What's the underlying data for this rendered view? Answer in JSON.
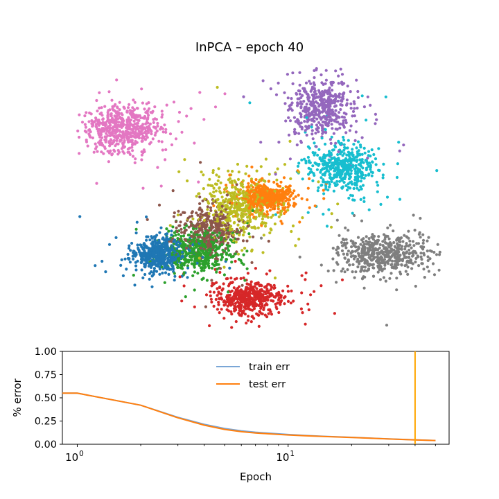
{
  "chart_data": [
    {
      "type": "scatter",
      "title": "InPCA – epoch 40",
      "axes_visible": false,
      "colors": [
        "#1f77b4",
        "#ff7f0e",
        "#2ca02c",
        "#d62728",
        "#9467bd",
        "#8c564b",
        "#e377c2",
        "#7f7f7f",
        "#bcbd22",
        "#17becf"
      ],
      "clusters": [
        {
          "color": "#1f77b4",
          "center": [
            -0.62,
            -0.35
          ],
          "spread": [
            0.09,
            0.07
          ],
          "count": 520
        },
        {
          "color": "#ff7f0e",
          "center": [
            0.1,
            0.13
          ],
          "spread": [
            0.08,
            0.05
          ],
          "count": 500
        },
        {
          "color": "#2ca02c",
          "center": [
            -0.35,
            -0.33
          ],
          "spread": [
            0.1,
            0.09
          ],
          "count": 480
        },
        {
          "color": "#d62728",
          "center": [
            -0.02,
            -0.72
          ],
          "spread": [
            0.11,
            0.07
          ],
          "count": 480
        },
        {
          "color": "#9467bd",
          "center": [
            0.45,
            0.88
          ],
          "spread": [
            0.1,
            0.12
          ],
          "count": 480
        },
        {
          "color": "#8c564b",
          "center": [
            -0.28,
            -0.15
          ],
          "spread": [
            0.09,
            0.1
          ],
          "count": 400
        },
        {
          "color": "#e377c2",
          "center": [
            -0.85,
            0.7
          ],
          "spread": [
            0.12,
            0.1
          ],
          "count": 560
        },
        {
          "color": "#7f7f7f",
          "center": [
            0.85,
            -0.35
          ],
          "spread": [
            0.15,
            0.08
          ],
          "count": 540
        },
        {
          "color": "#bcbd22",
          "center": [
            -0.08,
            0.05
          ],
          "spread": [
            0.12,
            0.12
          ],
          "count": 480
        },
        {
          "color": "#17becf",
          "center": [
            0.58,
            0.37
          ],
          "spread": [
            0.1,
            0.1
          ],
          "count": 480
        }
      ]
    },
    {
      "type": "line",
      "xlabel": "Epoch",
      "ylabel": "% error",
      "xscale": "log",
      "xlim": [
        0.85,
        58
      ],
      "ylim": [
        0,
        1
      ],
      "yticks": [
        "0.00",
        "0.25",
        "0.50",
        "0.75",
        "1.00"
      ],
      "yticks_values": [
        0,
        0.25,
        0.5,
        0.75,
        1.0
      ],
      "xtick_mantissa": "10",
      "xtick_exponents": [
        "0",
        "1"
      ],
      "xticks_values": [
        1,
        10
      ],
      "legend_position": "upper-center",
      "series": [
        {
          "name": "train err",
          "color": "#7aa6d6",
          "x": [
            0.85,
            1,
            2,
            3,
            4,
            5,
            6,
            7,
            8,
            10,
            12,
            15,
            20,
            25,
            30,
            40,
            50
          ],
          "y": [
            0.55,
            0.55,
            0.42,
            0.29,
            0.215,
            0.17,
            0.145,
            0.13,
            0.12,
            0.105,
            0.095,
            0.085,
            0.075,
            0.065,
            0.058,
            0.048,
            0.04
          ]
        },
        {
          "name": "test err",
          "color": "#ff7f0e",
          "x": [
            0.85,
            1,
            2,
            3,
            4,
            5,
            6,
            7,
            8,
            10,
            12,
            15,
            20,
            25,
            30,
            40,
            50
          ],
          "y": [
            0.55,
            0.55,
            0.42,
            0.285,
            0.205,
            0.16,
            0.135,
            0.122,
            0.113,
            0.1,
            0.092,
            0.083,
            0.073,
            0.064,
            0.057,
            0.047,
            0.04
          ]
        }
      ],
      "marker_line": {
        "x": 40,
        "color": "#ffa500"
      }
    }
  ]
}
